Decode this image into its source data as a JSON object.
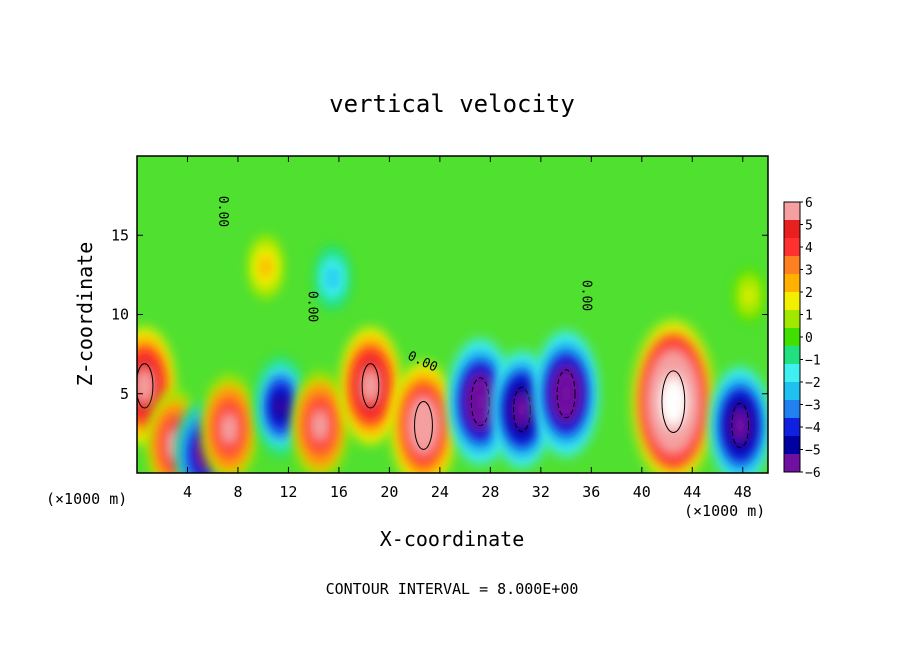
{
  "chart_data": {
    "type": "heatmap",
    "title": "vertical velocity",
    "xlabel": "X-coordinate",
    "ylabel": "Z-coordinate",
    "x_unit_left": "(×1000 m)",
    "x_unit_right": "(×1000 m)",
    "footer": "CONTOUR INTERVAL = 8.000E+00",
    "xlim": [
      0,
      50
    ],
    "ylim": [
      0,
      20
    ],
    "x_ticks": [
      4,
      8,
      12,
      16,
      20,
      24,
      28,
      32,
      36,
      40,
      44,
      48
    ],
    "x_tick_labels": [
      "4",
      "8",
      "12",
      "16",
      "20",
      "24",
      "28",
      "32",
      "36",
      "40",
      "44",
      "48"
    ],
    "y_ticks": [
      5,
      10,
      15
    ],
    "y_tick_labels": [
      "5",
      "10",
      "15"
    ],
    "colorbar": {
      "range": [
        -6,
        6
      ],
      "tick_labels": [
        "6",
        "5",
        "4",
        "3",
        "2",
        "1",
        "0",
        "−1",
        "−2",
        "−3",
        "−4",
        "−5",
        "−6"
      ],
      "colors": [
        "#f4a0a0",
        "#e82020",
        "#ff3030",
        "#ff8020",
        "#ffb000",
        "#f0f000",
        "#a0e800",
        "#40e000",
        "#20e080",
        "#40f0f0",
        "#20c0f0",
        "#2080f0",
        "#1020e0",
        "#0000a0",
        "#7010a0"
      ]
    },
    "contour_labels": [
      "0.00",
      "0.00",
      "0.00",
      "0.00"
    ],
    "features": [
      {
        "x": 0.6,
        "z": 5.5,
        "w": 9
      },
      {
        "x": 3.0,
        "z": 1.8,
        "w": 8
      },
      {
        "x": 5.3,
        "z": 1.2,
        "w": -8
      },
      {
        "x": 7.3,
        "z": 2.8,
        "w": 8
      },
      {
        "x": 10.2,
        "z": 13.0,
        "w": 3
      },
      {
        "x": 11.4,
        "z": 4.2,
        "w": -7
      },
      {
        "x": 14.5,
        "z": 3.0,
        "w": 8
      },
      {
        "x": 15.5,
        "z": 12.3,
        "w": -3
      },
      {
        "x": 18.5,
        "z": 5.5,
        "w": 9
      },
      {
        "x": 22.7,
        "z": 3.0,
        "w": 10
      },
      {
        "x": 27.2,
        "z": 4.5,
        "w": -10
      },
      {
        "x": 30.5,
        "z": 4.0,
        "w": -9
      },
      {
        "x": 34.0,
        "z": 5.0,
        "w": -10
      },
      {
        "x": 42.5,
        "z": 4.5,
        "w": 14
      },
      {
        "x": 47.8,
        "z": 3.0,
        "w": -9
      },
      {
        "x": 48.5,
        "z": 11.2,
        "w": 2
      }
    ]
  }
}
